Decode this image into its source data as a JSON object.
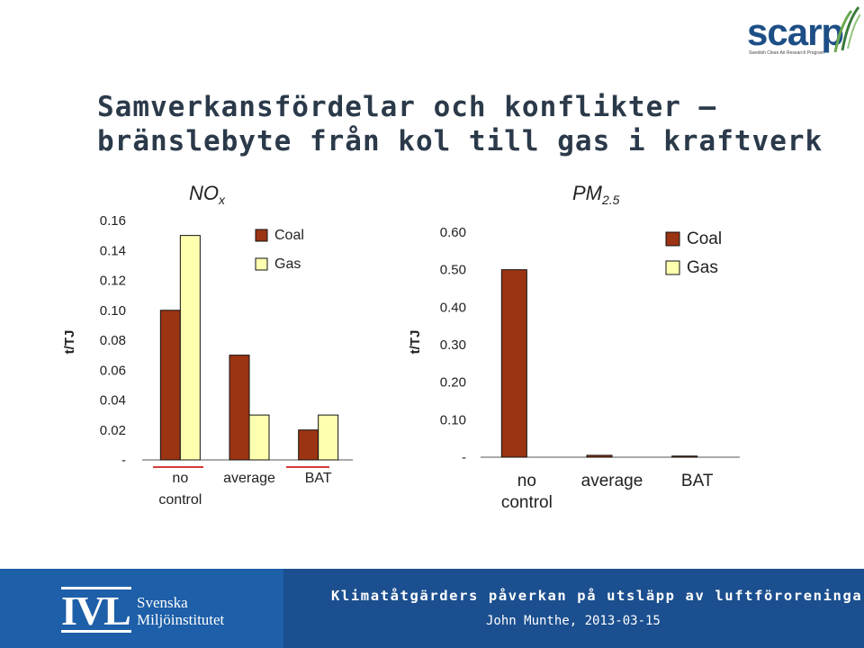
{
  "title": {
    "line1": "Samverkansfördelar och konflikter –",
    "line2": "bränslebyte från kol till gas i kraftverk"
  },
  "logo": {
    "name": "scarp",
    "tagline": "Swedish Clean Air Research Program"
  },
  "colors": {
    "coal": "#9b3412",
    "gas": "#ffffb0",
    "footer_dark": "#1b4f8f",
    "footer_light": "#1d5fa8",
    "title": "#2b3a4a",
    "divider_red": "#d23a3a"
  },
  "chart_data": [
    {
      "type": "bar",
      "title": "NO",
      "title_subscript": "x",
      "ylabel": "t/TJ",
      "categories": [
        "no control",
        "average",
        "BAT"
      ],
      "category_lines": [
        [
          "no",
          "control"
        ],
        [
          "average"
        ],
        [
          "BAT"
        ]
      ],
      "series": [
        {
          "name": "Coal",
          "values": [
            0.1,
            0.07,
            0.02
          ]
        },
        {
          "name": "Gas",
          "values": [
            0.15,
            0.03,
            0.03
          ]
        }
      ],
      "ylim": [
        0,
        0.16
      ],
      "yticks": [
        {
          "v": 0,
          "label": "-"
        },
        {
          "v": 0.02,
          "label": "0.02"
        },
        {
          "v": 0.04,
          "label": "0.04"
        },
        {
          "v": 0.06,
          "label": "0.06"
        },
        {
          "v": 0.08,
          "label": "0.08"
        },
        {
          "v": 0.1,
          "label": "0.10"
        },
        {
          "v": 0.12,
          "label": "0.12"
        },
        {
          "v": 0.14,
          "label": "0.14"
        },
        {
          "v": 0.16,
          "label": "0.16"
        }
      ],
      "grid": false,
      "legend": "top-right"
    },
    {
      "type": "bar",
      "title": "PM",
      "title_subscript": "2.5",
      "ylabel": "t/TJ",
      "categories": [
        "no control",
        "average",
        "BAT"
      ],
      "category_lines": [
        [
          "no",
          "control"
        ],
        [
          "average"
        ],
        [
          "BAT"
        ]
      ],
      "series": [
        {
          "name": "Coal",
          "values": [
            0.5,
            0.005,
            0.003
          ]
        },
        {
          "name": "Gas",
          "values": [
            0,
            0,
            0
          ]
        }
      ],
      "ylim": [
        0,
        0.6
      ],
      "yticks": [
        {
          "v": 0,
          "label": "-"
        },
        {
          "v": 0.1,
          "label": "0.10"
        },
        {
          "v": 0.2,
          "label": "0.20"
        },
        {
          "v": 0.3,
          "label": "0.30"
        },
        {
          "v": 0.4,
          "label": "0.40"
        },
        {
          "v": 0.5,
          "label": "0.50"
        },
        {
          "v": 0.6,
          "label": "0.60"
        }
      ],
      "grid": false,
      "legend": "top-right"
    }
  ],
  "footer": {
    "org_mark": "IVL",
    "org_name_line1": "Svenska",
    "org_name_line2": "Miljöinstitutet",
    "headline": "Klimatåtgärders påverkan på utsläpp av luftföroreningar",
    "author_date": "John Munthe, 2013-03-15"
  }
}
